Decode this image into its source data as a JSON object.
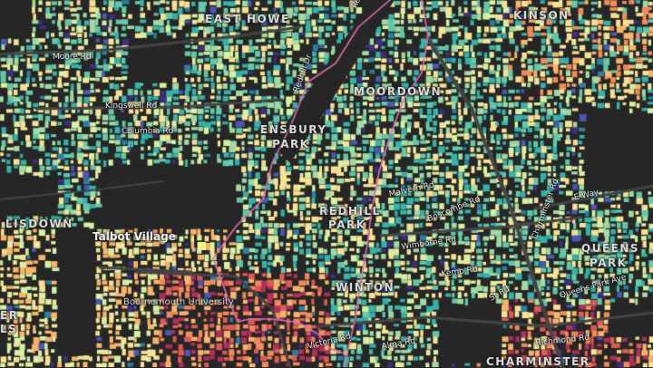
{
  "map": {
    "colors": {
      "background": "#262626",
      "road": "#444444",
      "boundary": "#e06bb0",
      "palette": [
        "#3e2e86",
        "#4a58b8",
        "#2b7fa3",
        "#35b2aa",
        "#62c9a8",
        "#9fdba5",
        "#d9f0a2",
        "#f7e294",
        "#f8b46a",
        "#f28a5a",
        "#df5a55",
        "#b0305b"
      ]
    },
    "labels": {
      "east_howe": "EAST HOWE",
      "moordown": "MOORDOWN",
      "ensbury": "ENSBURY",
      "ensbury_2": "PARK",
      "kinson": "KINSON",
      "talbot_village": "Talbot Village",
      "ensbury_park_left": "LISDOWN",
      "queens_park": "QUEENS",
      "queens_park_2": "PARK",
      "winton": "WINTON",
      "charminster": "CHARMINSTER",
      "redhill": "REDHILL",
      "redhill_2": "PARK",
      "left_edge_1": "ER",
      "left_edge_2": "LS"
    },
    "roads": {
      "moore_rd": "Moore Rd",
      "kingswell_rd": "Kingswell Rd",
      "columbia_rd": "Columbia Rd",
      "redhill_dr": "Redhill Dr",
      "redhill_dr_2": "Redhill Dr",
      "malvern_rd": "Malvern Rd",
      "e_way": "E Way",
      "charminster_rd": "Charminster Rd",
      "boscombe_rd": "Boscombe Rd",
      "wimborne_rd": "Wimborne Rd",
      "kemp_rd": "Kemp Rd",
      "queens_park_ave": "Queens Park Ave",
      "st_rd": "St Rd",
      "alma_rd": "Alma Rd",
      "richmond_rd": "Richmond Rd",
      "victoria_rd": "Victoria Rd"
    },
    "poi": {
      "university": "Bournemouth University"
    }
  }
}
